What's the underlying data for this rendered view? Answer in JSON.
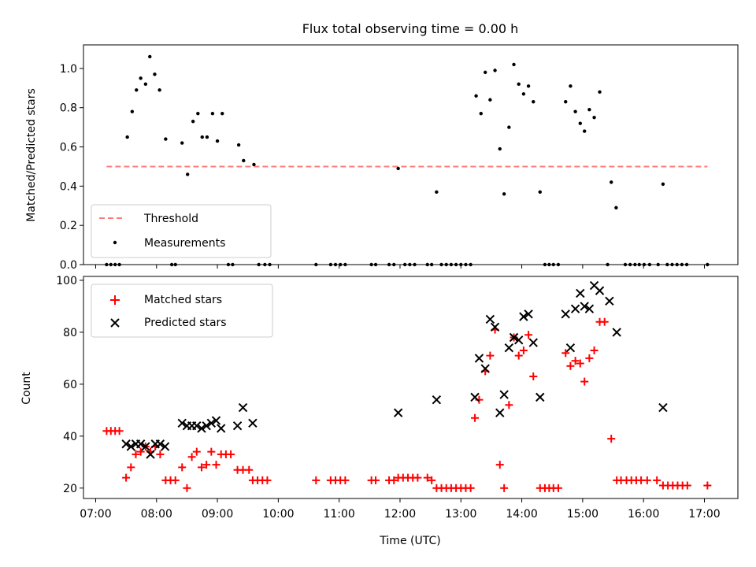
{
  "title": "Flux total observing time = 0.00 h",
  "chart_data": [
    {
      "type": "scatter",
      "ylabel": "Matched/Predicted stars",
      "xlim": [
        6.8,
        17.55
      ],
      "ylim": [
        0,
        1.12
      ],
      "yticks": [
        0.0,
        0.2,
        0.4,
        0.6,
        0.8,
        1.0
      ],
      "ytick_labels": [
        "0.0",
        "0.2",
        "0.4",
        "0.6",
        "0.8",
        "1.0"
      ],
      "legend": {
        "placement": "lower-left",
        "entries": [
          "Threshold",
          "Measurements"
        ]
      },
      "threshold": {
        "name": "Threshold",
        "value": 0.5,
        "x_range": [
          7.18,
          17.05
        ],
        "color": "#ff7b7b"
      },
      "measurements": {
        "name": "Measurements",
        "color": "#000000",
        "points": [
          [
            7.18,
            0
          ],
          [
            7.25,
            0
          ],
          [
            7.32,
            0
          ],
          [
            7.39,
            0
          ],
          [
            7.52,
            0.65
          ],
          [
            7.6,
            0.78
          ],
          [
            7.67,
            0.89
          ],
          [
            7.74,
            0.95
          ],
          [
            7.82,
            0.92
          ],
          [
            7.89,
            1.06
          ],
          [
            7.97,
            0.97
          ],
          [
            8.05,
            0.89
          ],
          [
            8.15,
            0.64
          ],
          [
            8.25,
            0
          ],
          [
            8.31,
            0
          ],
          [
            8.42,
            0.62
          ],
          [
            8.51,
            0.46
          ],
          [
            8.6,
            0.73
          ],
          [
            8.68,
            0.77
          ],
          [
            8.75,
            0.65
          ],
          [
            8.83,
            0.65
          ],
          [
            8.92,
            0.77
          ],
          [
            9.0,
            0.63
          ],
          [
            9.08,
            0.77
          ],
          [
            9.18,
            0
          ],
          [
            9.25,
            0
          ],
          [
            9.35,
            0.61
          ],
          [
            9.43,
            0.53
          ],
          [
            9.6,
            0.51
          ],
          [
            9.68,
            0
          ],
          [
            9.78,
            0
          ],
          [
            9.86,
            0
          ],
          [
            10.62,
            0
          ],
          [
            10.86,
            0
          ],
          [
            10.94,
            0
          ],
          [
            11.02,
            0
          ],
          [
            11.1,
            0
          ],
          [
            11.53,
            0
          ],
          [
            11.6,
            0
          ],
          [
            11.82,
            0
          ],
          [
            11.9,
            0
          ],
          [
            11.97,
            0.49
          ],
          [
            12.08,
            0
          ],
          [
            12.16,
            0
          ],
          [
            12.24,
            0
          ],
          [
            12.45,
            0
          ],
          [
            12.52,
            0
          ],
          [
            12.6,
            0.37
          ],
          [
            12.68,
            0
          ],
          [
            12.76,
            0
          ],
          [
            12.84,
            0
          ],
          [
            12.92,
            0
          ],
          [
            13.0,
            0
          ],
          [
            13.08,
            0
          ],
          [
            13.16,
            0
          ],
          [
            13.25,
            0.86
          ],
          [
            13.33,
            0.77
          ],
          [
            13.4,
            0.98
          ],
          [
            13.48,
            0.84
          ],
          [
            13.56,
            0.99
          ],
          [
            13.64,
            0.59
          ],
          [
            13.71,
            0.36
          ],
          [
            13.79,
            0.7
          ],
          [
            13.87,
            1.02
          ],
          [
            13.95,
            0.92
          ],
          [
            14.03,
            0.87
          ],
          [
            14.11,
            0.91
          ],
          [
            14.19,
            0.83
          ],
          [
            14.3,
            0.37
          ],
          [
            14.38,
            0
          ],
          [
            14.45,
            0
          ],
          [
            14.52,
            0
          ],
          [
            14.6,
            0
          ],
          [
            14.72,
            0.83
          ],
          [
            14.8,
            0.91
          ],
          [
            14.88,
            0.78
          ],
          [
            14.96,
            0.72
          ],
          [
            15.03,
            0.68
          ],
          [
            15.11,
            0.79
          ],
          [
            15.19,
            0.75
          ],
          [
            15.28,
            0.88
          ],
          [
            15.41,
            0
          ],
          [
            15.47,
            0.42
          ],
          [
            15.55,
            0.29
          ],
          [
            15.7,
            0
          ],
          [
            15.78,
            0
          ],
          [
            15.86,
            0
          ],
          [
            15.93,
            0
          ],
          [
            16.01,
            0
          ],
          [
            16.1,
            0
          ],
          [
            16.24,
            0
          ],
          [
            16.32,
            0.41
          ],
          [
            16.39,
            0
          ],
          [
            16.47,
            0
          ],
          [
            16.55,
            0
          ],
          [
            16.63,
            0
          ],
          [
            16.71,
            0
          ],
          [
            17.05,
            0
          ]
        ]
      }
    },
    {
      "type": "scatter",
      "xlabel": "Time (UTC)",
      "ylabel": "Count",
      "xlim": [
        6.8,
        17.55
      ],
      "ylim": [
        16,
        101.5
      ],
      "xticks": [
        7,
        8,
        9,
        10,
        11,
        12,
        13,
        14,
        15,
        16,
        17
      ],
      "xtick_labels": [
        "07:00",
        "08:00",
        "09:00",
        "10:00",
        "11:00",
        "12:00",
        "13:00",
        "14:00",
        "15:00",
        "16:00",
        "17:00"
      ],
      "yticks": [
        20,
        40,
        60,
        80,
        100
      ],
      "ytick_labels": [
        "20",
        "40",
        "60",
        "80",
        "100"
      ],
      "legend": {
        "placement": "upper-left",
        "entries": [
          "Matched stars",
          "Predicted stars"
        ]
      },
      "series": [
        {
          "name": "Matched stars",
          "marker": "plus",
          "color": "#ff0000",
          "points": [
            [
              7.18,
              42
            ],
            [
              7.25,
              42
            ],
            [
              7.32,
              42
            ],
            [
              7.39,
              42
            ],
            [
              7.5,
              24
            ],
            [
              7.58,
              28
            ],
            [
              7.66,
              33
            ],
            [
              7.74,
              34
            ],
            [
              7.82,
              36
            ],
            [
              7.9,
              34
            ],
            [
              7.98,
              36
            ],
            [
              8.06,
              33
            ],
            [
              8.15,
              23
            ],
            [
              8.23,
              23
            ],
            [
              8.31,
              23
            ],
            [
              8.42,
              28
            ],
            [
              8.5,
              20
            ],
            [
              8.58,
              32
            ],
            [
              8.66,
              34
            ],
            [
              8.74,
              28
            ],
            [
              8.82,
              29
            ],
            [
              8.9,
              34
            ],
            [
              8.98,
              29
            ],
            [
              9.06,
              33
            ],
            [
              9.14,
              33
            ],
            [
              9.22,
              33
            ],
            [
              9.33,
              27
            ],
            [
              9.42,
              27
            ],
            [
              9.52,
              27
            ],
            [
              9.58,
              23
            ],
            [
              9.66,
              23
            ],
            [
              9.74,
              23
            ],
            [
              9.82,
              23
            ],
            [
              10.62,
              23
            ],
            [
              10.86,
              23
            ],
            [
              10.94,
              23
            ],
            [
              11.02,
              23
            ],
            [
              11.1,
              23
            ],
            [
              11.53,
              23
            ],
            [
              11.6,
              23
            ],
            [
              11.82,
              23
            ],
            [
              11.9,
              23
            ],
            [
              11.97,
              24
            ],
            [
              12.05,
              24
            ],
            [
              12.13,
              24
            ],
            [
              12.21,
              24
            ],
            [
              12.29,
              24
            ],
            [
              12.45,
              24
            ],
            [
              12.52,
              23
            ],
            [
              12.6,
              20
            ],
            [
              12.68,
              20
            ],
            [
              12.76,
              20
            ],
            [
              12.84,
              20
            ],
            [
              12.92,
              20
            ],
            [
              13.0,
              20
            ],
            [
              13.08,
              20
            ],
            [
              13.16,
              20
            ],
            [
              13.23,
              47
            ],
            [
              13.3,
              54
            ],
            [
              13.4,
              65
            ],
            [
              13.48,
              71
            ],
            [
              13.56,
              81
            ],
            [
              13.64,
              29
            ],
            [
              13.71,
              20
            ],
            [
              13.79,
              52
            ],
            [
              13.87,
              78
            ],
            [
              13.95,
              71
            ],
            [
              14.03,
              73
            ],
            [
              14.11,
              79
            ],
            [
              14.19,
              63
            ],
            [
              14.3,
              20
            ],
            [
              14.38,
              20
            ],
            [
              14.45,
              20
            ],
            [
              14.52,
              20
            ],
            [
              14.6,
              20
            ],
            [
              14.72,
              72
            ],
            [
              14.8,
              67
            ],
            [
              14.88,
              69
            ],
            [
              14.96,
              68
            ],
            [
              15.03,
              61
            ],
            [
              15.11,
              70
            ],
            [
              15.19,
              73
            ],
            [
              15.28,
              84
            ],
            [
              15.36,
              84
            ],
            [
              15.47,
              39
            ],
            [
              15.56,
              23
            ],
            [
              15.63,
              23
            ],
            [
              15.72,
              23
            ],
            [
              15.8,
              23
            ],
            [
              15.88,
              23
            ],
            [
              15.96,
              23
            ],
            [
              16.06,
              23
            ],
            [
              16.22,
              23
            ],
            [
              16.32,
              21
            ],
            [
              16.4,
              21
            ],
            [
              16.48,
              21
            ],
            [
              16.56,
              21
            ],
            [
              16.64,
              21
            ],
            [
              16.72,
              21
            ],
            [
              17.05,
              21
            ]
          ]
        },
        {
          "name": "Predicted stars",
          "marker": "x",
          "color": "#000000",
          "points": [
            [
              7.5,
              37
            ],
            [
              7.58,
              36
            ],
            [
              7.66,
              37
            ],
            [
              7.74,
              37
            ],
            [
              7.82,
              36
            ],
            [
              7.9,
              33
            ],
            [
              7.98,
              37
            ],
            [
              8.06,
              37
            ],
            [
              8.14,
              36
            ],
            [
              8.42,
              45
            ],
            [
              8.5,
              44
            ],
            [
              8.58,
              44
            ],
            [
              8.66,
              44
            ],
            [
              8.74,
              43
            ],
            [
              8.82,
              44
            ],
            [
              8.9,
              45
            ],
            [
              8.98,
              46
            ],
            [
              9.06,
              43
            ],
            [
              9.33,
              44
            ],
            [
              9.42,
              51
            ],
            [
              9.58,
              45
            ],
            [
              11.97,
              49
            ],
            [
              12.6,
              54
            ],
            [
              13.23,
              55
            ],
            [
              13.3,
              70
            ],
            [
              13.4,
              66
            ],
            [
              13.48,
              85
            ],
            [
              13.56,
              82
            ],
            [
              13.64,
              49
            ],
            [
              13.71,
              56
            ],
            [
              13.79,
              74
            ],
            [
              13.87,
              78
            ],
            [
              13.95,
              77
            ],
            [
              14.03,
              86
            ],
            [
              14.11,
              87
            ],
            [
              14.19,
              76
            ],
            [
              14.3,
              55
            ],
            [
              14.72,
              87
            ],
            [
              14.8,
              74
            ],
            [
              14.88,
              89
            ],
            [
              14.96,
              95
            ],
            [
              15.03,
              90
            ],
            [
              15.11,
              89
            ],
            [
              15.19,
              98
            ],
            [
              15.28,
              96
            ],
            [
              15.44,
              92
            ],
            [
              15.56,
              80
            ],
            [
              16.32,
              51
            ]
          ]
        }
      ]
    }
  ]
}
